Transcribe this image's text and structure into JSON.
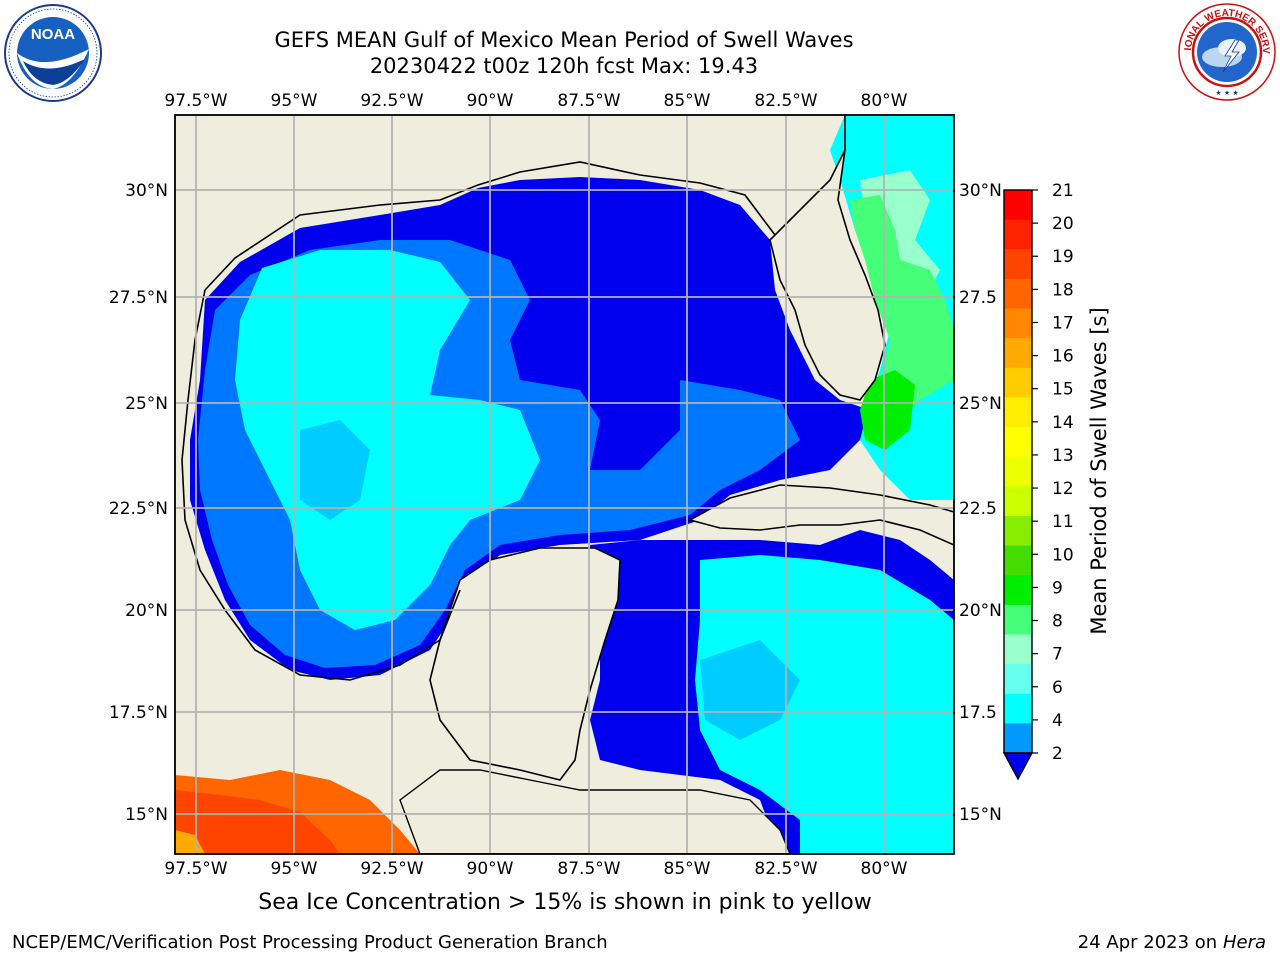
{
  "header": {
    "title": "GEFS MEAN Gulf of Mexico Mean Period of Swell Waves",
    "subtitle": "20230422 t00z 120h fcst   Max: 19.43"
  },
  "logos": {
    "left": {
      "name": "noaa-logo",
      "text": "NOAA"
    },
    "right": {
      "name": "nws-logo",
      "text": "NATIONAL WEATHER SERVICE"
    }
  },
  "map": {
    "lon_ticks": [
      "97.5°W",
      "95°W",
      "92.5°W",
      "90°W",
      "87.5°W",
      "85°W",
      "82.5°W",
      "80°W"
    ],
    "lat_ticks_left": [
      "30°N",
      "27.5°N",
      "25°N",
      "22.5°N",
      "20°N",
      "17.5°N",
      "15°N"
    ],
    "lat_ticks_right": [
      "30°N",
      "27.5",
      "25°N",
      "22.5",
      "20°N",
      "17.5",
      "15°N"
    ],
    "land_color": "#efedde",
    "grid_color": "#b3b3b3"
  },
  "colorbar": {
    "label": "Mean Period of Swell Waves [s]",
    "ticks": [
      "21",
      "20",
      "19",
      "18",
      "17",
      "16",
      "15",
      "14",
      "13",
      "12",
      "11",
      "10",
      "9",
      "8",
      "7",
      "6",
      "4",
      "2"
    ],
    "colors": [
      "#ff0000",
      "#ff2200",
      "#ff4400",
      "#ff6600",
      "#ff8800",
      "#ffaa00",
      "#ffcc00",
      "#ffee00",
      "#ffff00",
      "#eeff00",
      "#ccff00",
      "#88ee00",
      "#44dd00",
      "#00ee00",
      "#44ff77",
      "#99ffcc",
      "#66ffee",
      "#00ffff",
      "#0099ff",
      "#0000ee"
    ]
  },
  "ice_note": "Sea Ice Concentration > 15% is shown in pink to yellow",
  "footer": {
    "left": "NCEP/EMC/Verification Post Processing Product Generation Branch",
    "right_date": "24 Apr 2023 on",
    "right_host": "Hera"
  }
}
